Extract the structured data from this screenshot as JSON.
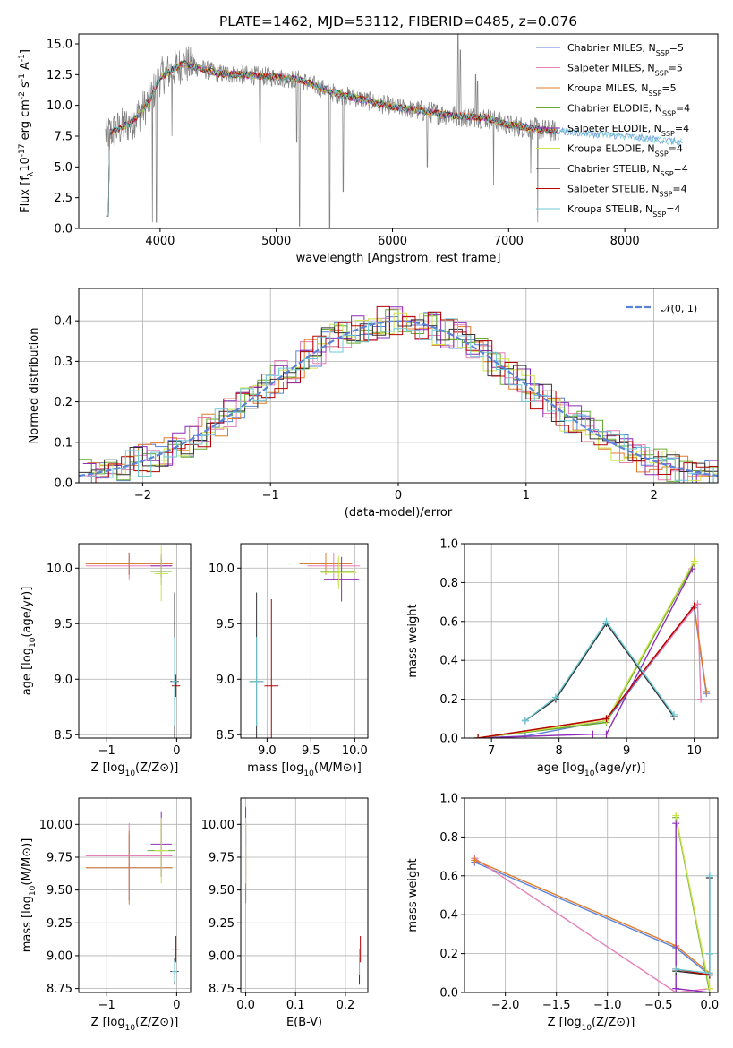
{
  "figure_title": "PLATE=1462, MJD=53112, FIBERID=0485, z=0.076",
  "colors": {
    "chabrier_miles": "#5a82d6",
    "salpeter_miles": "#e77fb8",
    "kroupa_miles": "#e07b2a",
    "chabrier_elodie": "#6aaa32",
    "salpeter_elodie": "#8e2cb9",
    "kroupa_elodie": "#cde44d",
    "chabrier_stelib": "#333333",
    "salpeter_stelib": "#b80000",
    "kroupa_stelib": "#6cc8d4",
    "data": "#808080",
    "normal_curve": "#5a82d6"
  },
  "chart_data": [
    {
      "id": "spectrum",
      "type": "line",
      "title": "PLATE=1462, MJD=53112, FIBERID=0485, z=0.076",
      "xlabel": "wavelength [Angstrom, rest frame]",
      "ylabel": "Flux [f_λ10^-17 erg cm^-2 s^-1 A^-1]",
      "xlim": [
        3300,
        8800
      ],
      "ylim": [
        0,
        15.8
      ],
      "xticks": [
        "4000",
        "5000",
        "6000",
        "7000",
        "8000"
      ],
      "yticks": [
        "0.0",
        "2.5",
        "5.0",
        "7.5",
        "10.0",
        "12.5",
        "15.0"
      ],
      "legend_position": "top-right",
      "legend": [
        "Chabrier MILES, N_SSP=5",
        "Salpeter MILES, N_SSP=5",
        "Kroupa MILES, N_SSP=5",
        "Chabrier ELODIE, N_SSP=4",
        "Salpeter ELODIE, N_SSP=4",
        "Kroupa ELODIE, N_SSP=4",
        "Chabrier STELIB, N_SSP=4",
        "Salpeter STELIB, N_SSP=4",
        "Kroupa STELIB, N_SSP=4"
      ],
      "continuum_points": [
        [
          3530,
          7.6
        ],
        [
          3750,
          8.6
        ],
        [
          3900,
          10.2
        ],
        [
          4000,
          12.3
        ],
        [
          4200,
          13.4
        ],
        [
          4500,
          12.6
        ],
        [
          5000,
          12.3
        ],
        [
          5200,
          12.1
        ],
        [
          5500,
          11.0
        ],
        [
          6000,
          9.9
        ],
        [
          6500,
          9.2
        ],
        [
          6800,
          9.0
        ],
        [
          7000,
          8.4
        ],
        [
          7400,
          7.9
        ],
        [
          8000,
          7.5
        ],
        [
          8500,
          7.0
        ]
      ],
      "absorption_lines": [
        [
          3934,
          0.5
        ],
        [
          3969,
          0.5
        ],
        [
          4102,
          7.5
        ],
        [
          4861,
          7.0
        ],
        [
          5175,
          7.0
        ],
        [
          5200,
          0.2
        ],
        [
          5460,
          0.1
        ],
        [
          5577,
          3.0
        ],
        [
          6300,
          5.0
        ],
        [
          6870,
          3.5
        ],
        [
          7190,
          4.5
        ],
        [
          7250,
          0.5
        ]
      ],
      "emission_lines": [
        [
          6563,
          16.0
        ],
        [
          6583,
          14.5
        ],
        [
          6717,
          12.5
        ],
        [
          6731,
          12.0
        ]
      ]
    },
    {
      "id": "residuals",
      "type": "line",
      "xlabel": "(data-model)/error",
      "ylabel": "Normed distribution",
      "xlim": [
        -2.5,
        2.5
      ],
      "ylim": [
        0,
        0.48
      ],
      "xticks": [
        "−2",
        "−1",
        "0",
        "1",
        "2"
      ],
      "yticks": [
        "0.0",
        "0.1",
        "0.2",
        "0.3",
        "0.4"
      ],
      "legend_position": "top-right",
      "legend": [
        "𝒩(0, 1)"
      ],
      "grid": true
    },
    {
      "id": "age_vs_Z",
      "type": "scatter",
      "xlabel": "Z [log10(Z/Z⊙)]",
      "ylabel": "age [log10(age/yr)]",
      "xlim": [
        -1.4,
        0.2
      ],
      "ylim": [
        8.47,
        10.22
      ],
      "xticks": [
        "−1",
        "0"
      ],
      "yticks": [
        "8.5",
        "9.0",
        "9.5",
        "10.0"
      ],
      "grid": true,
      "points": [
        {
          "x": -0.68,
          "y": 10.04,
          "xerr": 0.62,
          "yerr": 0.1,
          "color": "#5a82d6"
        },
        {
          "x": -0.68,
          "y": 10.02,
          "xerr": 0.62,
          "yerr": 0.12,
          "color": "#e77fb8"
        },
        {
          "x": -0.68,
          "y": 10.04,
          "xerr": 0.62,
          "yerr": 0.1,
          "color": "#e07b2a"
        },
        {
          "x": -0.22,
          "y": 9.97,
          "xerr": 0.15,
          "yerr": 0.12,
          "color": "#6aaa32"
        },
        {
          "x": -0.22,
          "y": 10.02,
          "xerr": 0.15,
          "yerr": 0.1,
          "color": "#8e2cb9"
        },
        {
          "x": -0.22,
          "y": 9.95,
          "xerr": 0.1,
          "yerr": 0.25,
          "color": "#cde44d"
        },
        {
          "x": -0.03,
          "y": 8.98,
          "xerr": 0.06,
          "yerr": 0.8,
          "color": "#333333"
        },
        {
          "x": -0.01,
          "y": 8.94,
          "xerr": 0.06,
          "yerr": 0.1,
          "color": "#b80000"
        },
        {
          "x": -0.03,
          "y": 8.98,
          "xerr": 0.04,
          "yerr": 0.4,
          "color": "#6cc8d4"
        }
      ]
    },
    {
      "id": "age_vs_mass",
      "type": "scatter",
      "xlabel": "mass [log10(M/M⊙)]",
      "ylabel": "",
      "xlim": [
        8.7,
        10.15
      ],
      "ylim": [
        8.47,
        10.22
      ],
      "xticks": [
        "9.0",
        "9.5",
        "10.0"
      ],
      "yticks": [
        "8.5",
        "9.0",
        "9.5",
        "10.0"
      ],
      "grid": true,
      "points": [
        {
          "x": 9.67,
          "y": 10.04,
          "xerr": 0.3,
          "yerr": 0.1,
          "color": "#5a82d6"
        },
        {
          "x": 9.76,
          "y": 10.02,
          "xerr": 0.3,
          "yerr": 0.12,
          "color": "#e77fb8"
        },
        {
          "x": 9.67,
          "y": 10.04,
          "xerr": 0.3,
          "yerr": 0.1,
          "color": "#e07b2a"
        },
        {
          "x": 9.8,
          "y": 9.97,
          "xerr": 0.2,
          "yerr": 0.12,
          "color": "#6aaa32"
        },
        {
          "x": 9.85,
          "y": 9.9,
          "xerr": 0.2,
          "yerr": 0.2,
          "color": "#8e2cb9"
        },
        {
          "x": 9.82,
          "y": 9.96,
          "xerr": 0.2,
          "yerr": 0.15,
          "color": "#cde44d"
        },
        {
          "x": 8.88,
          "y": 8.98,
          "xerr": 0.08,
          "yerr": 0.8,
          "color": "#333333"
        },
        {
          "x": 9.05,
          "y": 8.94,
          "xerr": 0.08,
          "yerr": 0.78,
          "color": "#b80000"
        },
        {
          "x": 8.88,
          "y": 8.98,
          "xerr": 0.08,
          "yerr": 0.4,
          "color": "#6cc8d4"
        }
      ]
    },
    {
      "id": "weight_vs_age",
      "type": "line",
      "xlabel": "age [log10(age/yr)]",
      "ylabel": "mass weight",
      "xlim": [
        6.6,
        10.35
      ],
      "ylim": [
        0,
        1.0
      ],
      "xticks": [
        "7",
        "8",
        "9",
        "10"
      ],
      "yticks": [
        "0.0",
        "0.2",
        "0.4",
        "0.6",
        "0.8",
        "1.0"
      ],
      "grid": true,
      "series": [
        {
          "color": "#5a82d6",
          "points": [
            [
              6.8,
              0.0
            ],
            [
              7.5,
              0.01
            ],
            [
              8.7,
              0.09
            ],
            [
              10.0,
              0.67
            ],
            [
              10.18,
              0.23
            ]
          ]
        },
        {
          "color": "#e77fb8",
          "points": [
            [
              6.8,
              0.0
            ],
            [
              8.7,
              0.1
            ],
            [
              10.05,
              0.69
            ],
            [
              10.1,
              0.2
            ]
          ]
        },
        {
          "color": "#e07b2a",
          "points": [
            [
              6.8,
              0.0
            ],
            [
              8.7,
              0.1
            ],
            [
              10.0,
              0.68
            ],
            [
              10.18,
              0.24
            ]
          ]
        },
        {
          "color": "#6aaa32",
          "points": [
            [
              6.8,
              0.0
            ],
            [
              8.7,
              0.08
            ],
            [
              10.0,
              0.9
            ]
          ]
        },
        {
          "color": "#8e2cb9",
          "points": [
            [
              6.8,
              0.0
            ],
            [
              8.5,
              0.02
            ],
            [
              8.7,
              0.02
            ],
            [
              9.97,
              0.87
            ]
          ]
        },
        {
          "color": "#cde44d",
          "points": [
            [
              6.8,
              0.0
            ],
            [
              8.7,
              0.09
            ],
            [
              10.0,
              0.91
            ]
          ]
        },
        {
          "color": "#333333",
          "points": [
            [
              7.5,
              0.09
            ],
            [
              7.95,
              0.2
            ],
            [
              8.7,
              0.59
            ],
            [
              9.7,
              0.11
            ]
          ]
        },
        {
          "color": "#b80000",
          "points": [
            [
              6.8,
              0.0
            ],
            [
              8.7,
              0.1
            ],
            [
              10.0,
              0.68
            ]
          ]
        },
        {
          "color": "#6cc8d4",
          "points": [
            [
              7.5,
              0.09
            ],
            [
              7.95,
              0.21
            ],
            [
              8.7,
              0.6
            ],
            [
              9.7,
              0.12
            ]
          ]
        }
      ]
    },
    {
      "id": "mass_vs_Z",
      "type": "scatter",
      "xlabel": "Z [log10(Z/Z⊙)]",
      "ylabel": "mass [log10(M/M⊙)]",
      "xlim": [
        -1.4,
        0.2
      ],
      "ylim": [
        8.72,
        10.2
      ],
      "xticks": [
        "−1",
        "0"
      ],
      "yticks": [
        "8.75",
        "9.00",
        "9.25",
        "9.50",
        "9.75",
        "10.00"
      ],
      "grid": true,
      "points": [
        {
          "x": -0.68,
          "y": 9.67,
          "xerr": 0.62,
          "yerr": 0.25,
          "color": "#5a82d6"
        },
        {
          "x": -0.68,
          "y": 9.76,
          "xerr": 0.62,
          "yerr": 0.25,
          "color": "#e77fb8"
        },
        {
          "x": -0.68,
          "y": 9.67,
          "xerr": 0.62,
          "yerr": 0.28,
          "color": "#e07b2a"
        },
        {
          "x": -0.22,
          "y": 9.8,
          "xerr": 0.2,
          "yerr": 0.2,
          "color": "#6aaa32"
        },
        {
          "x": -0.22,
          "y": 9.85,
          "xerr": 0.15,
          "yerr": 0.25,
          "color": "#8e2cb9"
        },
        {
          "x": -0.22,
          "y": 9.8,
          "xerr": 0.1,
          "yerr": 0.25,
          "color": "#cde44d"
        },
        {
          "x": -0.03,
          "y": 8.88,
          "xerr": 0.06,
          "yerr": 0.1,
          "color": "#333333"
        },
        {
          "x": -0.01,
          "y": 9.05,
          "xerr": 0.06,
          "yerr": 0.1,
          "color": "#b80000"
        },
        {
          "x": -0.03,
          "y": 8.88,
          "xerr": 0.04,
          "yerr": 0.08,
          "color": "#6cc8d4"
        }
      ]
    },
    {
      "id": "mass_vs_ebv",
      "type": "scatter",
      "xlabel": "E(B-V)",
      "ylabel": "",
      "xlim": [
        -0.01,
        0.245
      ],
      "ylim": [
        8.72,
        10.2
      ],
      "xticks": [
        "0.0",
        "0.1",
        "0.2"
      ],
      "yticks": [
        "8.75",
        "9.00",
        "9.25",
        "9.50",
        "9.75",
        "10.00"
      ],
      "grid": true,
      "points": [
        {
          "x": 0.0,
          "y": 9.67,
          "xerr": 0.0,
          "yerr": 0.25,
          "color": "#5a82d6"
        },
        {
          "x": 0.0,
          "y": 9.76,
          "xerr": 0.0,
          "yerr": 0.25,
          "color": "#e77fb8"
        },
        {
          "x": 0.0,
          "y": 9.6,
          "xerr": 0.0,
          "yerr": 0.2,
          "color": "#e07b2a"
        },
        {
          "x": 0.0,
          "y": 9.8,
          "xerr": 0.0,
          "yerr": 0.2,
          "color": "#6aaa32"
        },
        {
          "x": 0.0,
          "y": 9.98,
          "xerr": 0.0,
          "yerr": 0.15,
          "color": "#8e2cb9"
        },
        {
          "x": 0.0,
          "y": 9.8,
          "xerr": 0.0,
          "yerr": 0.25,
          "color": "#cde44d"
        },
        {
          "x": 0.228,
          "y": 8.88,
          "xerr": 0.0,
          "yerr": 0.1,
          "color": "#333333"
        },
        {
          "x": 0.23,
          "y": 9.05,
          "xerr": 0.0,
          "yerr": 0.1,
          "color": "#b80000"
        },
        {
          "x": 0.228,
          "y": 8.95,
          "xerr": 0.0,
          "yerr": 0.1,
          "color": "#6cc8d4"
        }
      ]
    },
    {
      "id": "weight_vs_Z",
      "type": "line",
      "xlabel": "Z [log10(Z/Z⊙)]",
      "ylabel": "mass weight",
      "xlim": [
        -2.4,
        0.08
      ],
      "ylim": [
        0,
        1.0
      ],
      "xticks": [
        "−2.0",
        "−1.5",
        "−1.0",
        "−0.5",
        "0.0"
      ],
      "yticks": [
        "0.0",
        "0.2",
        "0.4",
        "0.6",
        "0.8",
        "1.0"
      ],
      "grid": true,
      "series": [
        {
          "color": "#5a82d6",
          "points": [
            [
              -2.3,
              0.67
            ],
            [
              -0.33,
              0.23
            ],
            [
              0.0,
              0.09
            ]
          ]
        },
        {
          "color": "#e77fb8",
          "points": [
            [
              -2.3,
              0.69
            ],
            [
              -0.33,
              0.0
            ],
            [
              0.0,
              0.02
            ]
          ]
        },
        {
          "color": "#e07b2a",
          "points": [
            [
              -2.3,
              0.68
            ],
            [
              -0.33,
              0.24
            ],
            [
              0.0,
              0.1
            ]
          ]
        },
        {
          "color": "#6aaa32",
          "points": [
            [
              -0.33,
              0.9
            ],
            [
              0.0,
              0.0
            ]
          ]
        },
        {
          "color": "#8e2cb9",
          "points": [
            [
              -0.33,
              0.87
            ],
            [
              -0.33,
              0.02
            ],
            [
              0.0,
              0.0
            ]
          ]
        },
        {
          "color": "#cde44d",
          "points": [
            [
              -0.33,
              0.91
            ],
            [
              0.0,
              0.02
            ]
          ]
        },
        {
          "color": "#333333",
          "points": [
            [
              -0.33,
              0.11
            ],
            [
              0.0,
              0.09
            ],
            [
              0.0,
              0.2
            ],
            [
              0.0,
              0.59
            ]
          ]
        },
        {
          "color": "#b80000",
          "points": [
            [
              -0.33,
              0.12
            ],
            [
              0.0,
              0.09
            ]
          ]
        },
        {
          "color": "#6cc8d4",
          "points": [
            [
              -0.33,
              0.12
            ],
            [
              0.0,
              0.1
            ],
            [
              0.0,
              0.6
            ],
            [
              0.0,
              0.2
            ]
          ]
        }
      ]
    }
  ]
}
